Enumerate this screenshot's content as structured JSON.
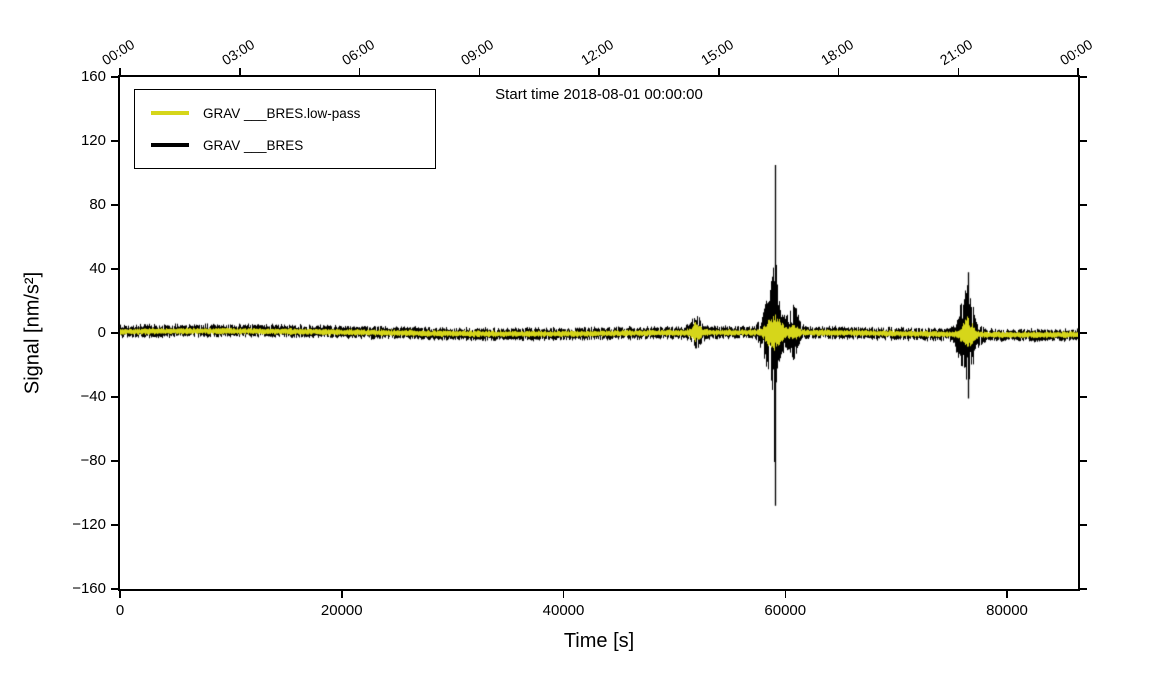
{
  "figure": {
    "background": "#ffffff"
  },
  "chart_data": {
    "type": "line",
    "title": "Start time 2018-08-01 00:00:00",
    "xlabel": "Time [s]",
    "ylabel": "Signal [nm/s²]",
    "xlim": [
      0,
      86400
    ],
    "ylim": [
      -160,
      160
    ],
    "grid": false,
    "x_ticks": [
      0,
      20000,
      40000,
      60000,
      80000
    ],
    "x_tick_labels": [
      "0",
      "20000",
      "40000",
      "60000",
      "80000"
    ],
    "y_ticks": [
      -160,
      -120,
      -80,
      -40,
      0,
      40,
      80,
      120,
      160
    ],
    "y_tick_labels": [
      "−160",
      "−120",
      "−80",
      "−40",
      "0",
      "40",
      "80",
      "120",
      "160"
    ],
    "top_axis": {
      "tick_seconds": [
        0,
        10800,
        21600,
        32400,
        43200,
        54000,
        64800,
        75600,
        86400
      ],
      "tick_labels": [
        "00:00",
        "03:00",
        "06:00",
        "09:00",
        "12:00",
        "15:00",
        "18:00",
        "21:00",
        "00:00"
      ],
      "label_rotation_deg": -32
    },
    "legend": {
      "position": "top-left",
      "entries": [
        "GRAV ___BRES.low-pass",
        "GRAV ___BRES"
      ]
    },
    "noise_seed": 42,
    "series": [
      {
        "name": "GRAV ___BRES.low-pass",
        "color": "#d6d61a",
        "smooth": true,
        "base_amplitude": 2.1,
        "events": [
          {
            "t": 52000,
            "amp": 4.5,
            "sigma": 350
          },
          {
            "t": 59000,
            "amp": 10.5,
            "sigma": 550
          },
          {
            "t": 60800,
            "amp": 4.5,
            "sigma": 300
          },
          {
            "t": 76450,
            "amp": 8.5,
            "sigma": 420
          }
        ]
      },
      {
        "name": "GRAV ___BRES",
        "color": "#000000",
        "smooth": false,
        "base_amplitude": 4.2,
        "events": [
          {
            "t": 52000,
            "amp": 6.5,
            "sigma": 420
          },
          {
            "t": 58900,
            "amp": 26,
            "sigma": 650
          },
          {
            "t": 59050,
            "amp": 55,
            "sigma": 130
          },
          {
            "t": 60800,
            "amp": 13,
            "sigma": 380
          },
          {
            "t": 76400,
            "amp": 22,
            "sigma": 600
          },
          {
            "t": 76450,
            "amp": 14,
            "sigma": 150
          }
        ],
        "spikes": [
          {
            "t": 59050,
            "up": 105,
            "down": -108
          },
          {
            "t": 76450,
            "up": 38,
            "down": -41
          }
        ]
      }
    ]
  }
}
